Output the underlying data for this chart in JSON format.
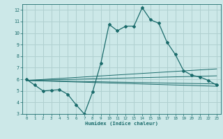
{
  "xlabel": "Humidex (Indice chaleur)",
  "bg_color": "#cce8e8",
  "grid_color": "#b0d0d0",
  "line_color": "#1a6b6b",
  "xlim": [
    -0.5,
    23.5
  ],
  "ylim": [
    3,
    12.5
  ],
  "xticks": [
    0,
    1,
    2,
    3,
    4,
    5,
    6,
    7,
    8,
    9,
    10,
    11,
    12,
    13,
    14,
    15,
    16,
    17,
    18,
    19,
    20,
    21,
    22,
    23
  ],
  "yticks": [
    3,
    4,
    5,
    6,
    7,
    8,
    9,
    10,
    11,
    12
  ],
  "main_line_x": [
    0,
    1,
    2,
    3,
    4,
    5,
    6,
    7,
    8,
    9,
    10,
    11,
    12,
    13,
    14,
    15,
    16,
    17,
    18,
    19,
    20,
    21,
    22,
    23
  ],
  "main_line_y": [
    6.0,
    5.5,
    5.0,
    5.05,
    5.1,
    4.7,
    3.8,
    3.0,
    4.9,
    7.4,
    10.75,
    10.2,
    10.6,
    10.6,
    12.2,
    11.15,
    10.85,
    9.2,
    8.15,
    6.75,
    6.35,
    6.2,
    5.9,
    5.5
  ],
  "trend_lines": [
    {
      "x": [
        0,
        23
      ],
      "y": [
        5.9,
        5.4
      ]
    },
    {
      "x": [
        0,
        23
      ],
      "y": [
        5.9,
        5.6
      ]
    },
    {
      "x": [
        0,
        23
      ],
      "y": [
        5.9,
        6.3
      ]
    },
    {
      "x": [
        0,
        23
      ],
      "y": [
        5.9,
        6.9
      ]
    }
  ]
}
